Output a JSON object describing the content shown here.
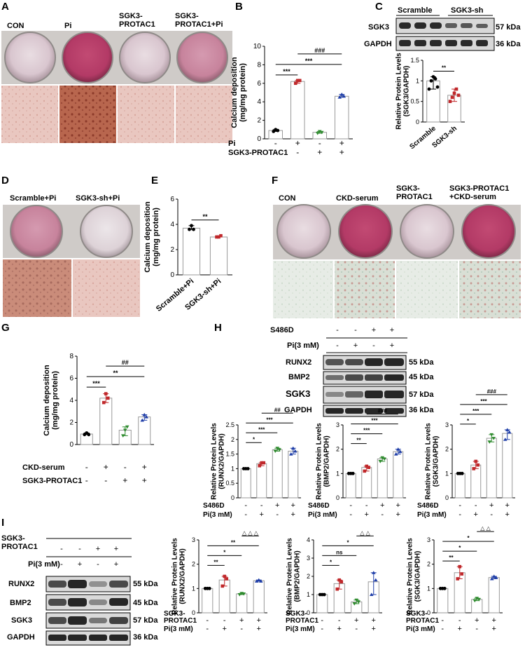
{
  "figure": {
    "panels": {
      "A": {
        "letter": "A",
        "labels": [
          "CON",
          "Pi",
          "SGK3-\nPROTAC1",
          "SGK3-\nPROTAC1+Pi"
        ]
      },
      "B": {
        "letter": "B"
      },
      "C": {
        "letter": "C",
        "group_labels": [
          "Scramble",
          "SGK3-sh"
        ],
        "blot_rows": [
          "SGK3",
          "GAPDH"
        ],
        "kda": [
          "57 kDa",
          "36 kDa"
        ]
      },
      "D": {
        "letter": "D",
        "labels": [
          "Scramble+Pi",
          "SGK3-sh+Pi"
        ]
      },
      "E": {
        "letter": "E"
      },
      "F": {
        "letter": "F",
        "labels": [
          "CON",
          "CKD-serum",
          "SGK3-\nPROTAC1",
          "SGK3-PROTAC1\n+CKD-serum"
        ]
      },
      "G": {
        "letter": "G"
      },
      "H": {
        "letter": "H",
        "treatment_rows": [
          {
            "name": "S486D",
            "signs": [
              "-",
              "-",
              "+",
              "+"
            ]
          },
          {
            "name": "Pi(3 mM)",
            "signs": [
              "-",
              "+",
              "-",
              "+"
            ]
          }
        ],
        "blot_rows": [
          "RUNX2",
          "BMP2",
          "SGK3",
          "GAPDH"
        ],
        "kda": [
          "55 kDa",
          "45 kDa",
          "57 kDa",
          "36 kDa"
        ]
      },
      "I": {
        "letter": "I",
        "treatment_rows": [
          {
            "name": "SGK3-\nPROTAC1",
            "signs": [
              "-",
              "-",
              "+",
              "+"
            ]
          },
          {
            "name": "Pi(3 mM)",
            "signs": [
              "-",
              "+",
              "-",
              "+"
            ]
          }
        ],
        "blot_rows": [
          "RUNX2",
          "BMP2",
          "SGK3",
          "GAPDH"
        ],
        "kda": [
          "55 kDa",
          "45 kDa",
          "57 kDa",
          "36 kDa"
        ]
      }
    }
  },
  "chart_data": [
    {
      "id": "B",
      "type": "bar",
      "ylabel": "Calcium deposition\n(mg/mg protein)",
      "ylim": [
        0,
        10
      ],
      "yticks": [
        0,
        2,
        4,
        6,
        8,
        10
      ],
      "values": [
        0.9,
        6.2,
        0.7,
        4.6
      ],
      "colors": [
        "#000000",
        "#c0282b",
        "#2e8b2e",
        "#1f3ea8"
      ],
      "points": [
        [
          0.8,
          1.0,
          0.9
        ],
        [
          6.0,
          6.3,
          6.3
        ],
        [
          0.6,
          0.8,
          0.7
        ],
        [
          4.5,
          4.8,
          4.6
        ]
      ],
      "rows": [
        {
          "name": "Pi",
          "signs": [
            "-",
            "+",
            "-",
            "+"
          ]
        },
        {
          "name": "SGK3-PROTAC1",
          "signs": [
            "-",
            "-",
            "+",
            "+"
          ]
        }
      ],
      "sig": [
        {
          "a": 0,
          "b": 1,
          "label": "***"
        },
        {
          "a": 0,
          "b": 3,
          "label": "***"
        },
        {
          "a": 1,
          "b": 3,
          "label": "###"
        }
      ]
    },
    {
      "id": "C",
      "type": "bar",
      "ylabel": "Relative Protein Levels\n(SGK3/GAPDH)",
      "ylim": [
        0,
        1.5
      ],
      "yticks": [
        0,
        0.5,
        1.0,
        1.5
      ],
      "categories": [
        "Scramble",
        "SGK3-sh"
      ],
      "values": [
        1.0,
        0.65
      ],
      "colors": [
        "#000000",
        "#c0282b"
      ],
      "points": [
        [
          0.8,
          1.0,
          1.1,
          1.05,
          0.85
        ],
        [
          0.5,
          0.6,
          0.7,
          0.8,
          0.65
        ]
      ],
      "sig": [
        {
          "a": 0,
          "b": 1,
          "label": "**"
        }
      ]
    },
    {
      "id": "E",
      "type": "bar",
      "ylabel": "Calcium deposition\n(mg/mg protein)",
      "ylim": [
        0,
        6
      ],
      "yticks": [
        0,
        2,
        4,
        6
      ],
      "categories": [
        "Scramble+Pi",
        "SGK3-sh+Pi"
      ],
      "values": [
        3.7,
        3.0
      ],
      "colors": [
        "#000000",
        "#c0282b"
      ],
      "points": [
        [
          3.6,
          3.9,
          3.6
        ],
        [
          3.0,
          3.0,
          3.1
        ]
      ],
      "sig": [
        {
          "a": 0,
          "b": 1,
          "label": "**"
        }
      ]
    },
    {
      "id": "G",
      "type": "bar",
      "ylabel": "Calcium deposition\n(mg/mg protein)",
      "ylim": [
        0,
        8
      ],
      "yticks": [
        0,
        2,
        4,
        6,
        8
      ],
      "values": [
        0.95,
        4.2,
        1.3,
        2.5
      ],
      "colors": [
        "#000000",
        "#c0282b",
        "#2e8b2e",
        "#1f3ea8"
      ],
      "points": [
        [
          0.9,
          1.05,
          0.9
        ],
        [
          3.8,
          4.6,
          4.2
        ],
        [
          0.8,
          1.3,
          1.6
        ],
        [
          2.2,
          2.7,
          2.5
        ]
      ],
      "rows": [
        {
          "name": "CKD-serum",
          "signs": [
            "-",
            "+",
            "-",
            "+"
          ]
        },
        {
          "name": "SGK3-PROTAC1",
          "signs": [
            "-",
            "-",
            "+",
            "+"
          ]
        }
      ],
      "sig": [
        {
          "a": 0,
          "b": 1,
          "label": "***"
        },
        {
          "a": 0,
          "b": 3,
          "label": "**"
        },
        {
          "a": 1,
          "b": 3,
          "label": "##"
        }
      ]
    },
    {
      "id": "H1",
      "type": "bar",
      "ylabel": "Relative Protein Levels\n(RUNX2/GAPDH)",
      "ylim": [
        0,
        2.5
      ],
      "yticks": [
        0,
        0.5,
        1.0,
        1.5,
        2.0,
        2.5
      ],
      "values": [
        1.0,
        1.17,
        1.65,
        1.6
      ],
      "colors": [
        "#000000",
        "#c0282b",
        "#2e8b2e",
        "#1f3ea8"
      ],
      "points": [
        [
          1.0,
          1.0,
          1.0
        ],
        [
          1.1,
          1.2,
          1.2
        ],
        [
          1.6,
          1.7,
          1.65
        ],
        [
          1.5,
          1.7,
          1.6
        ]
      ],
      "rows": [
        {
          "name": "S486D",
          "signs": [
            "-",
            "-",
            "+",
            "+"
          ]
        },
        {
          "name": "Pi(3 mM)",
          "signs": [
            "-",
            "+",
            "-",
            "+"
          ]
        }
      ],
      "sig": [
        {
          "a": 0,
          "b": 1,
          "label": "*"
        },
        {
          "a": 0,
          "b": 2,
          "label": "***"
        },
        {
          "a": 0,
          "b": 3,
          "label": "***"
        },
        {
          "a": 1,
          "b": 3,
          "label": "##"
        }
      ]
    },
    {
      "id": "H2",
      "type": "bar",
      "ylabel": "Relative Protein Levels\n(BMP2/GAPDH)",
      "ylim": [
        0,
        3
      ],
      "yticks": [
        0,
        1,
        2,
        3
      ],
      "values": [
        1.0,
        1.25,
        1.6,
        1.9
      ],
      "colors": [
        "#000000",
        "#c0282b",
        "#2e8b2e",
        "#1f3ea8"
      ],
      "points": [
        [
          1.0,
          1.0,
          1.0
        ],
        [
          1.1,
          1.3,
          1.25
        ],
        [
          1.5,
          1.65,
          1.6
        ],
        [
          1.8,
          2.0,
          1.9
        ]
      ],
      "rows": [
        {
          "name": "S486D",
          "signs": [
            "-",
            "-",
            "+",
            "+"
          ]
        },
        {
          "name": "Pi(3 mM)",
          "signs": [
            "-",
            "+",
            "-",
            "+"
          ]
        }
      ],
      "sig": [
        {
          "a": 0,
          "b": 1,
          "label": "**"
        },
        {
          "a": 0,
          "b": 2,
          "label": "***"
        },
        {
          "a": 0,
          "b": 3,
          "label": "***"
        },
        {
          "a": 1,
          "b": 3,
          "label": "###"
        }
      ]
    },
    {
      "id": "H3",
      "type": "bar",
      "ylabel": "Relative Protein Levels\n(SGK3/GAPDH)",
      "ylim": [
        0,
        3
      ],
      "yticks": [
        0,
        1,
        2,
        3
      ],
      "values": [
        1.0,
        1.35,
        2.45,
        2.65
      ],
      "colors": [
        "#000000",
        "#c0282b",
        "#2e8b2e",
        "#1f3ea8"
      ],
      "points": [
        [
          1.0,
          1.0,
          1.0
        ],
        [
          1.2,
          1.5,
          1.35
        ],
        [
          2.3,
          2.6,
          2.45
        ],
        [
          2.4,
          2.8,
          2.7
        ]
      ],
      "rows": [
        {
          "name": "S486D",
          "signs": [
            "-",
            "-",
            "+",
            "+"
          ]
        },
        {
          "name": "Pi(3 mM)",
          "signs": [
            "-",
            "+",
            "-",
            "+"
          ]
        }
      ],
      "sig": [
        {
          "a": 0,
          "b": 1,
          "label": "*"
        },
        {
          "a": 0,
          "b": 2,
          "label": "***"
        },
        {
          "a": 0,
          "b": 3,
          "label": "***"
        },
        {
          "a": 1,
          "b": 3,
          "label": "###"
        }
      ]
    },
    {
      "id": "I1",
      "type": "bar",
      "ylabel": "Relative Protein Levels\n(RUNX2/GAPDH)",
      "ylim": [
        0,
        3
      ],
      "yticks": [
        0,
        1,
        2,
        3
      ],
      "values": [
        1.0,
        1.35,
        0.78,
        1.32
      ],
      "colors": [
        "#000000",
        "#c0282b",
        "#2e8b2e",
        "#1f3ea8"
      ],
      "points": [
        [
          1.0,
          1.0,
          1.0
        ],
        [
          1.1,
          1.5,
          1.4
        ],
        [
          0.75,
          0.8,
          0.78
        ],
        [
          1.3,
          1.35,
          1.3
        ]
      ],
      "rows": [
        {
          "name": "SGK3-\nPROTAC1",
          "signs": [
            "-",
            "-",
            "+",
            "+"
          ]
        },
        {
          "name": "Pi(3 mM)",
          "signs": [
            "-",
            "+",
            "-",
            "+"
          ]
        }
      ],
      "sig": [
        {
          "a": 0,
          "b": 1,
          "label": "**"
        },
        {
          "a": 0,
          "b": 2,
          "label": "*"
        },
        {
          "a": 0,
          "b": 3,
          "label": "**"
        },
        {
          "a": 2,
          "b": 3,
          "label": "△ △ △"
        }
      ]
    },
    {
      "id": "I2",
      "type": "bar",
      "ylabel": "Relative Protein Levels\n(BMP2/GAPDH)",
      "ylim": [
        0,
        4
      ],
      "yticks": [
        0,
        1,
        2,
        3,
        4
      ],
      "values": [
        1.0,
        1.6,
        0.6,
        1.7
      ],
      "colors": [
        "#000000",
        "#c0282b",
        "#2e8b2e",
        "#1f3ea8"
      ],
      "points": [
        [
          1.0,
          1.0,
          1.0
        ],
        [
          1.3,
          1.8,
          1.7
        ],
        [
          0.5,
          0.7,
          0.6
        ],
        [
          1.0,
          2.2,
          1.8
        ]
      ],
      "rows": [
        {
          "name": "SGK3-\nPROTAC1",
          "signs": [
            "-",
            "-",
            "+",
            "+"
          ]
        },
        {
          "name": "Pi(3 mM)",
          "signs": [
            "-",
            "+",
            "-",
            "+"
          ]
        }
      ],
      "sig": [
        {
          "a": 0,
          "b": 1,
          "label": "*"
        },
        {
          "a": 0,
          "b": 2,
          "label": "ns"
        },
        {
          "a": 0,
          "b": 3,
          "label": "*"
        },
        {
          "a": 2,
          "b": 3,
          "label": "△ △"
        }
      ]
    },
    {
      "id": "I3",
      "type": "bar",
      "ylabel": "Relative Protein Levels\n(SGK3/GAPDH)",
      "ylim": [
        0,
        3
      ],
      "yticks": [
        0,
        1,
        2,
        3
      ],
      "values": [
        1.0,
        1.65,
        0.55,
        1.45
      ],
      "colors": [
        "#000000",
        "#c0282b",
        "#2e8b2e",
        "#1f3ea8"
      ],
      "points": [
        [
          1.0,
          1.0,
          1.0
        ],
        [
          1.4,
          1.9,
          1.6
        ],
        [
          0.5,
          0.6,
          0.55
        ],
        [
          1.4,
          1.5,
          1.45
        ]
      ],
      "rows": [
        {
          "name": "SGK3-\nPROTAC1",
          "signs": [
            "-",
            "-",
            "+",
            "+"
          ]
        },
        {
          "name": "Pi(3 mM)",
          "signs": [
            "-",
            "+",
            "-",
            "+"
          ]
        }
      ],
      "sig": [
        {
          "a": 0,
          "b": 1,
          "label": "**"
        },
        {
          "a": 0,
          "b": 2,
          "label": "*"
        },
        {
          "a": 0,
          "b": 3,
          "label": "*"
        },
        {
          "a": 2,
          "b": 3,
          "label": "△ △"
        }
      ]
    }
  ]
}
